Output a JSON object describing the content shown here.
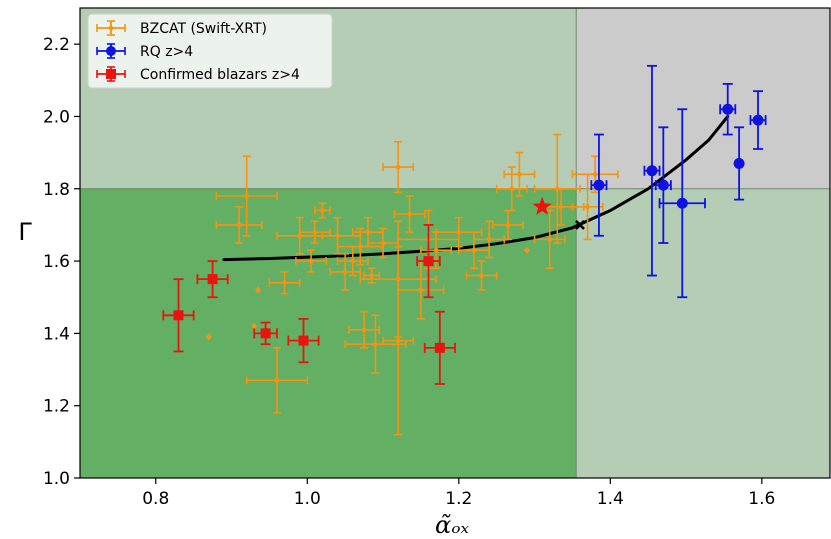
{
  "chart_data": {
    "type": "scatter",
    "xlabel": "α̃ₒₓ",
    "ylabel": "Γ",
    "xlim": [
      0.7,
      1.69
    ],
    "ylim": [
      1.0,
      2.3
    ],
    "x_ticks": [
      0.8,
      1.0,
      1.2,
      1.4,
      1.6
    ],
    "y_ticks": [
      1.0,
      1.2,
      1.4,
      1.6,
      1.8,
      2.0,
      2.2
    ],
    "x_tick_labels": [
      "0.8",
      "1.0",
      "1.2",
      "1.4",
      "1.6"
    ],
    "y_tick_labels": [
      "1.0",
      "1.2",
      "1.4",
      "1.6",
      "1.8",
      "2.0",
      "2.2"
    ],
    "grid": false,
    "legend_position": "top-left",
    "regions": {
      "alpha_split": 1.355,
      "gamma_split": 1.8,
      "colors": {
        "low_alpha_low_gamma": "#63af63",
        "low_alpha_high_gamma": "#b5cdb5",
        "high_alpha_high_gamma": "#cbcbcb",
        "high_alpha_low_gamma": "#b5cdb5"
      }
    },
    "curve": {
      "color": "#000000",
      "points": [
        [
          0.89,
          1.604
        ],
        [
          0.95,
          1.607
        ],
        [
          1.0,
          1.611
        ],
        [
          1.05,
          1.615
        ],
        [
          1.1,
          1.62
        ],
        [
          1.15,
          1.627
        ],
        [
          1.2,
          1.635
        ],
        [
          1.25,
          1.648
        ],
        [
          1.3,
          1.665
        ],
        [
          1.35,
          1.692
        ],
        [
          1.4,
          1.74
        ],
        [
          1.45,
          1.8
        ],
        [
          1.5,
          1.88
        ],
        [
          1.53,
          1.935
        ],
        [
          1.555,
          2.0
        ]
      ]
    },
    "markers": {
      "star": {
        "x": 1.31,
        "y": 1.75,
        "color": "#e8150f"
      },
      "cross": {
        "x": 1.36,
        "y": 1.7,
        "color": "#000000"
      }
    },
    "series": [
      {
        "name": "BZCAT (Swift-XRT)",
        "color": "#f59312",
        "marker": "diamond",
        "points": [
          {
            "x": 0.92,
            "y": 1.78,
            "xerr": 0.04,
            "yerr": 0.11
          },
          {
            "x": 0.91,
            "y": 1.7,
            "xerr": 0.03,
            "yerr": 0.05
          },
          {
            "x": 0.935,
            "y": 1.52,
            "xerr": 0.0,
            "yerr": 0.0
          },
          {
            "x": 0.93,
            "y": 1.42,
            "xerr": 0.0,
            "yerr": 0.0
          },
          {
            "x": 0.87,
            "y": 1.39,
            "xerr": 0.0,
            "yerr": 0.0
          },
          {
            "x": 0.96,
            "y": 1.27,
            "xerr": 0.04,
            "yerr": 0.09
          },
          {
            "x": 0.97,
            "y": 1.54,
            "xerr": 0.02,
            "yerr": 0.03
          },
          {
            "x": 0.99,
            "y": 1.67,
            "xerr": 0.03,
            "yerr": 0.05
          },
          {
            "x": 1.02,
            "y": 1.74,
            "xerr": 0.01,
            "yerr": 0.02
          },
          {
            "x": 1.005,
            "y": 1.6,
            "xerr": 0.02,
            "yerr": 0.03
          },
          {
            "x": 1.01,
            "y": 1.68,
            "xerr": 0.02,
            "yerr": 0.03
          },
          {
            "x": 1.04,
            "y": 1.67,
            "xerr": 0.03,
            "yerr": 0.05
          },
          {
            "x": 1.05,
            "y": 1.57,
            "xerr": 0.02,
            "yerr": 0.05
          },
          {
            "x": 1.06,
            "y": 1.6,
            "xerr": 0.02,
            "yerr": 0.04
          },
          {
            "x": 1.07,
            "y": 1.64,
            "xerr": 0.03,
            "yerr": 0.05
          },
          {
            "x": 1.08,
            "y": 1.68,
            "xerr": 0.02,
            "yerr": 0.04
          },
          {
            "x": 1.085,
            "y": 1.56,
            "xerr": 0.01,
            "yerr": 0.02
          },
          {
            "x": 1.1,
            "y": 1.65,
            "xerr": 0.02,
            "yerr": 0.04
          },
          {
            "x": 1.075,
            "y": 1.41,
            "xerr": 0.02,
            "yerr": 0.05
          },
          {
            "x": 1.09,
            "y": 1.37,
            "xerr": 0.04,
            "yerr": 0.08
          },
          {
            "x": 1.12,
            "y": 1.86,
            "xerr": 0.02,
            "yerr": 0.07
          },
          {
            "x": 1.135,
            "y": 1.73,
            "xerr": 0.02,
            "yerr": 0.05
          },
          {
            "x": 1.12,
            "y": 1.55,
            "xerr": 0.05,
            "yerr": 0.16
          },
          {
            "x": 1.12,
            "y": 1.38,
            "xerr": 0.02,
            "yerr": 0.26
          },
          {
            "x": 1.15,
            "y": 1.52,
            "xerr": 0.03,
            "yerr": 0.08
          },
          {
            "x": 1.16,
            "y": 1.66,
            "xerr": 0.04,
            "yerr": 0.08
          },
          {
            "x": 1.17,
            "y": 1.63,
            "xerr": 0.02,
            "yerr": 0.05
          },
          {
            "x": 1.2,
            "y": 1.68,
            "xerr": 0.03,
            "yerr": 0.04
          },
          {
            "x": 1.22,
            "y": 1.63,
            "xerr": 0.02,
            "yerr": 0.05
          },
          {
            "x": 1.23,
            "y": 1.56,
            "xerr": 0.02,
            "yerr": 0.04
          },
          {
            "x": 1.24,
            "y": 1.66,
            "xerr": 0.02,
            "yerr": 0.05
          },
          {
            "x": 1.265,
            "y": 1.7,
            "xerr": 0.02,
            "yerr": 0.04
          },
          {
            "x": 1.27,
            "y": 1.8,
            "xerr": 0.02,
            "yerr": 0.06
          },
          {
            "x": 1.28,
            "y": 1.84,
            "xerr": 0.02,
            "yerr": 0.06
          },
          {
            "x": 1.29,
            "y": 1.63,
            "xerr": 0.0,
            "yerr": 0.0
          },
          {
            "x": 1.33,
            "y": 1.8,
            "xerr": 0.03,
            "yerr": 0.15
          },
          {
            "x": 1.32,
            "y": 1.66,
            "xerr": 0.02,
            "yerr": 0.08
          },
          {
            "x": 1.335,
            "y": 1.75,
            "xerr": 0.03,
            "yerr": 0.05
          },
          {
            "x": 1.37,
            "y": 1.75,
            "xerr": 0.02,
            "yerr": 0.09
          },
          {
            "x": 1.38,
            "y": 1.84,
            "xerr": 0.03,
            "yerr": 0.05
          }
        ]
      },
      {
        "name": "RQ z>4",
        "color": "#0d12e3",
        "marker": "circle",
        "points": [
          {
            "x": 1.385,
            "y": 1.81,
            "xerr": 0.01,
            "yerr": 0.14
          },
          {
            "x": 1.455,
            "y": 1.85,
            "xerr": 0.01,
            "yerr": 0.29
          },
          {
            "x": 1.47,
            "y": 1.81,
            "xerr": 0.01,
            "yerr": 0.16
          },
          {
            "x": 1.495,
            "y": 1.76,
            "xerr": 0.03,
            "yerr": 0.26
          },
          {
            "x": 1.555,
            "y": 2.02,
            "xerr": 0.01,
            "yerr": 0.07
          },
          {
            "x": 1.57,
            "y": 1.87,
            "xerr": 0.0,
            "yerr": 0.1
          },
          {
            "x": 1.595,
            "y": 1.99,
            "xerr": 0.01,
            "yerr": 0.08
          }
        ]
      },
      {
        "name": "Confirmed blazars z>4",
        "color": "#e8150f",
        "marker": "square",
        "points": [
          {
            "x": 0.83,
            "y": 1.45,
            "xerr": 0.02,
            "yerr": 0.1
          },
          {
            "x": 0.875,
            "y": 1.55,
            "xerr": 0.02,
            "yerr": 0.05
          },
          {
            "x": 0.945,
            "y": 1.4,
            "xerr": 0.015,
            "yerr": 0.03
          },
          {
            "x": 0.995,
            "y": 1.38,
            "xerr": 0.02,
            "yerr": 0.06
          },
          {
            "x": 1.16,
            "y": 1.6,
            "xerr": 0.015,
            "yerr": 0.1
          },
          {
            "x": 1.175,
            "y": 1.36,
            "xerr": 0.02,
            "yerr": 0.1
          }
        ]
      }
    ]
  }
}
